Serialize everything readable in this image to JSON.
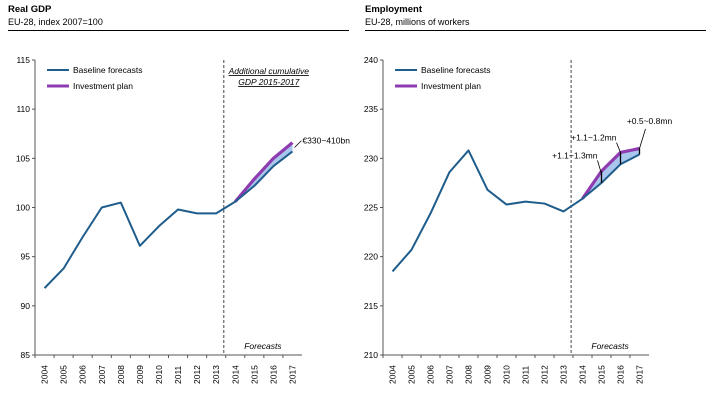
{
  "chart_data": [
    {
      "type": "line",
      "title": "Real GDP",
      "subtitle": "EU-28, index 2007=100",
      "x": [
        "2004",
        "2005",
        "2006",
        "2007",
        "2008",
        "2009",
        "2010",
        "2011",
        "2012",
        "2013",
        "2014",
        "2015",
        "2016",
        "2017"
      ],
      "ylim": [
        85,
        115
      ],
      "yticks": [
        85,
        90,
        95,
        100,
        105,
        110,
        115
      ],
      "series": [
        {
          "name": "Baseline forecasts",
          "color": "#1f5d8c",
          "values": [
            91.8,
            93.8,
            97.0,
            100.0,
            100.5,
            96.1,
            98.1,
            99.8,
            99.4,
            99.4,
            100.6,
            102.2,
            104.2,
            105.7
          ]
        },
        {
          "name": "Investment plan",
          "color": "#8e3cb0",
          "values": [
            null,
            null,
            null,
            null,
            null,
            null,
            null,
            null,
            null,
            null,
            100.6,
            102.9,
            105.0,
            106.6
          ]
        }
      ],
      "forecast_start_after": "2013",
      "forecast_label": "Forecasts",
      "annotation_title_lines": [
        "Additional cumulative",
        "GDP 2015-2017"
      ],
      "annotations": [
        "€330~410bn"
      ],
      "legend": "top-left",
      "grid": false
    },
    {
      "type": "line",
      "title": "Employment",
      "subtitle": "EU-28, millions of workers",
      "x": [
        "2004",
        "2005",
        "2006",
        "2007",
        "2008",
        "2009",
        "2010",
        "2011",
        "2012",
        "2013",
        "2014",
        "2015",
        "2016",
        "2017"
      ],
      "ylim": [
        210,
        240
      ],
      "yticks": [
        210,
        215,
        220,
        225,
        230,
        235,
        240
      ],
      "series": [
        {
          "name": "Baseline forecasts",
          "color": "#1f5d8c",
          "values": [
            218.5,
            220.7,
            224.4,
            228.6,
            230.8,
            226.8,
            225.3,
            225.6,
            225.4,
            224.6,
            225.9,
            227.5,
            229.4,
            230.4
          ]
        },
        {
          "name": "Investment plan",
          "color": "#8e3cb0",
          "values": [
            null,
            null,
            null,
            null,
            null,
            null,
            null,
            null,
            null,
            null,
            225.9,
            228.7,
            230.6,
            231.0
          ]
        }
      ],
      "forecast_start_after": "2013",
      "forecast_label": "Forecasts",
      "annotations": [
        "+1.1~1.3mn",
        "+1.1~1.2mn",
        "+0.5~0.8mn"
      ],
      "legend": "top-left",
      "grid": false
    }
  ]
}
